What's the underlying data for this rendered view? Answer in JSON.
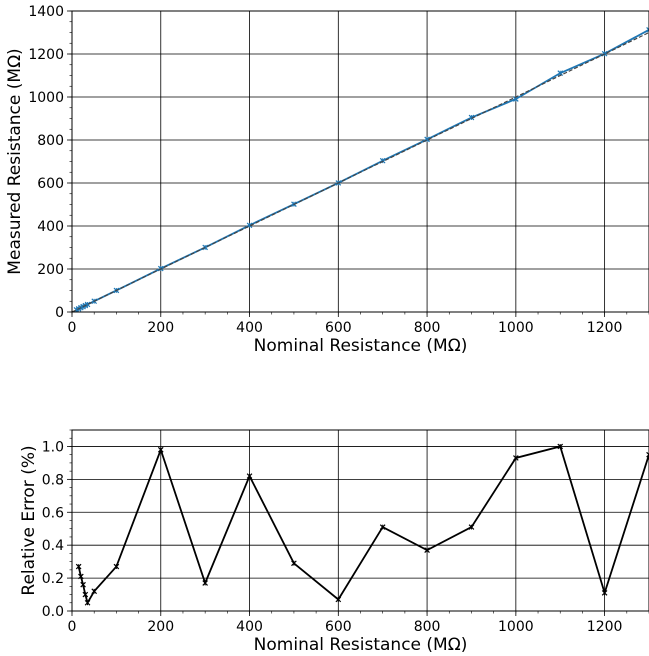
{
  "chart_data": [
    {
      "type": "line",
      "xlabel": "Nominal Resistance (MΩ)",
      "ylabel": "Measured Resistance (MΩ)",
      "xlim": [
        0,
        1300
      ],
      "ylim": [
        0,
        1400
      ],
      "xticks": [
        "0",
        "200",
        "400",
        "600",
        "800",
        "1000",
        "1200"
      ],
      "yticks": [
        "0",
        "200",
        "400",
        "600",
        "800",
        "1000",
        "1200",
        "1400"
      ],
      "grid": true,
      "series": [
        {
          "color": "#1f77b4",
          "style": "solid-with-markers",
          "x": [
            10,
            15,
            20,
            25,
            30,
            35,
            50,
            100,
            200,
            300,
            400,
            500,
            600,
            700,
            800,
            900,
            1000,
            1100,
            1200,
            1300
          ],
          "y": [
            10.03,
            15.03,
            20.03,
            25.02,
            30.02,
            35.01,
            50.06,
            100.3,
            202,
            300.5,
            403.3,
            501.5,
            600.4,
            703.6,
            802.9,
            904.6,
            990.7,
            1111,
            1201.3,
            1312.4
          ]
        },
        {
          "color": "#444444",
          "style": "dashed-reference",
          "x": [
            0,
            1300
          ],
          "y": [
            0,
            1300
          ]
        }
      ]
    },
    {
      "type": "line",
      "xlabel": "Nominal Resistance (MΩ)",
      "ylabel": "Relative Error (%)",
      "xlim": [
        0,
        1300
      ],
      "ylim": [
        0,
        1.1
      ],
      "xticks": [
        "0",
        "200",
        "400",
        "600",
        "800",
        "1000",
        "1200"
      ],
      "yticks": [
        "0.0",
        "0.2",
        "0.4",
        "0.6",
        "0.8",
        "1.0"
      ],
      "grid": true,
      "series": [
        {
          "color": "#000000",
          "style": "solid-with-x-markers",
          "x": [
            15,
            20,
            25,
            30,
            35,
            50,
            100,
            200,
            300,
            400,
            500,
            600,
            700,
            800,
            900,
            1000,
            1100,
            1200,
            1300
          ],
          "y": [
            0.27,
            0.21,
            0.16,
            0.1,
            0.05,
            0.12,
            0.27,
            0.98,
            0.17,
            0.82,
            0.29,
            0.07,
            0.51,
            0.37,
            0.51,
            0.93,
            1.0,
            0.11,
            0.95
          ]
        }
      ]
    }
  ]
}
